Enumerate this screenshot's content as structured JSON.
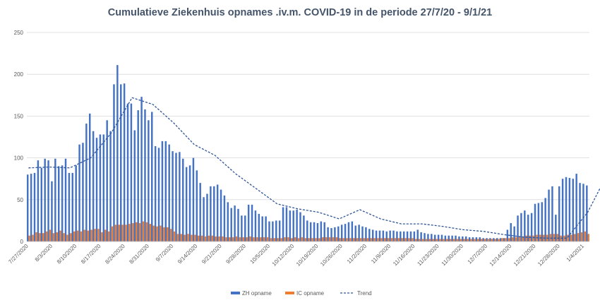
{
  "chart_data": {
    "type": "bar",
    "title": "Cumulatieve Ziekenhuis opnames .iv.m. COVID-19  in de periode  27/7/20 - 9/1/21",
    "xlabel": "",
    "ylabel": "",
    "ylim": [
      0,
      250
    ],
    "yticks": [
      "0",
      "50",
      "100",
      "150",
      "200",
      "250"
    ],
    "grid": true,
    "legend_position": "bottom",
    "colors": {
      "zh": "#4472c4",
      "ic": "#ed7d31",
      "trend": "#2f5597",
      "grid": "#d9d9d9"
    },
    "x_tick_labels": [
      "7/27/2020",
      "8/3/2020",
      "8/10/2020",
      "8/17/2020",
      "8/24/2020",
      "8/31/2020",
      "9/7/2020",
      "9/14/2020",
      "9/21/2020",
      "9/28/2020",
      "10/5/2020",
      "10/12/2020",
      "10/19/2020",
      "10/26/2020",
      "11/2/2020",
      "11/9/2020",
      "11/16/2020",
      "11/23/2020",
      "11/30/2020",
      "12/7/2020",
      "12/14/2020",
      "12/21/2020",
      "12/28/2020",
      "1/4/2021"
    ],
    "x_range": [
      "7/27/2020",
      "1/9/2021"
    ],
    "series": [
      {
        "name": "ZH opname",
        "type": "bar",
        "values": [
          80,
          81,
          82,
          97,
          88,
          99,
          97,
          72,
          99,
          90,
          91,
          99,
          82,
          82,
          91,
          116,
          118,
          141,
          153,
          132,
          124,
          128,
          128,
          145,
          132,
          188,
          211,
          188,
          189,
          165,
          165,
          133,
          157,
          173,
          158,
          145,
          155,
          114,
          112,
          120,
          120,
          116,
          108,
          106,
          107,
          99,
          89,
          91,
          100,
          85,
          70,
          53,
          57,
          66,
          66,
          68,
          62,
          55,
          47,
          40,
          43,
          39,
          31,
          31,
          44,
          44,
          37,
          33,
          30,
          30,
          24,
          24,
          25,
          25,
          41,
          41,
          37,
          37,
          38,
          35,
          31,
          25,
          23,
          23,
          22,
          24,
          23,
          17,
          16,
          17,
          18,
          20,
          21,
          23,
          24,
          19,
          20,
          18,
          17,
          15,
          14,
          13,
          13,
          13,
          12,
          13,
          13,
          12,
          12,
          12,
          12,
          12,
          12,
          14,
          11,
          10,
          9,
          9,
          8,
          8,
          8,
          7,
          7,
          7,
          7,
          6,
          6,
          6,
          5,
          5,
          5,
          5,
          4,
          4,
          4,
          4,
          4,
          4,
          4,
          14,
          22,
          18,
          31,
          34,
          37,
          32,
          34,
          45,
          46,
          47,
          52,
          62,
          66,
          32,
          66,
          75,
          77,
          76,
          75,
          81,
          70,
          69,
          67
        ]
      },
      {
        "name": "IC opname",
        "type": "bar",
        "values": [
          7,
          8,
          11,
          10,
          10,
          12,
          14,
          10,
          11,
          13,
          10,
          8,
          10,
          12,
          13,
          12,
          14,
          13,
          14,
          15,
          15,
          11,
          14,
          12,
          18,
          20,
          20,
          20,
          20,
          21,
          22,
          23,
          22,
          24,
          23,
          21,
          19,
          18,
          19,
          17,
          17,
          15,
          12,
          9,
          9,
          8,
          9,
          8,
          8,
          7,
          7,
          6,
          7,
          7,
          6,
          6,
          6,
          5,
          5,
          5,
          6,
          5,
          5,
          5,
          6,
          5,
          5,
          5,
          5,
          5,
          4,
          4,
          4,
          4,
          5,
          5,
          4,
          5,
          4,
          5,
          4,
          4,
          4,
          4,
          4,
          5,
          5,
          5,
          5,
          5,
          4,
          4,
          4,
          4,
          4,
          4,
          4,
          4,
          4,
          4,
          4,
          4,
          4,
          4,
          4,
          4,
          4,
          4,
          4,
          4,
          4,
          4,
          3,
          3,
          3,
          3,
          3,
          3,
          3,
          3,
          3,
          3,
          3,
          3,
          3,
          3,
          3,
          3,
          3,
          3,
          3,
          3,
          3,
          3,
          3,
          3,
          3,
          4,
          4,
          4,
          5,
          5,
          6,
          6,
          7,
          7,
          7,
          8,
          8,
          8,
          8,
          9,
          9,
          9,
          7,
          7,
          8,
          8,
          9,
          10,
          11,
          12,
          9
        ]
      },
      {
        "name": "Trend",
        "type": "line",
        "style": "dashed",
        "x_days": [
          0,
          6,
          12,
          18,
          24,
          30,
          36,
          42,
          48,
          54,
          60,
          66,
          72,
          78,
          84,
          90,
          96,
          102,
          108,
          114,
          120,
          126,
          132,
          138,
          144,
          150,
          156,
          162,
          167
        ],
        "values": [
          88,
          89,
          88,
          100,
          130,
          172,
          164,
          142,
          116,
          103,
          81,
          63,
          45,
          39,
          35,
          27,
          38,
          27,
          21,
          21,
          18,
          14,
          12,
          8,
          5,
          4,
          4,
          35,
          75
        ]
      }
    ]
  }
}
